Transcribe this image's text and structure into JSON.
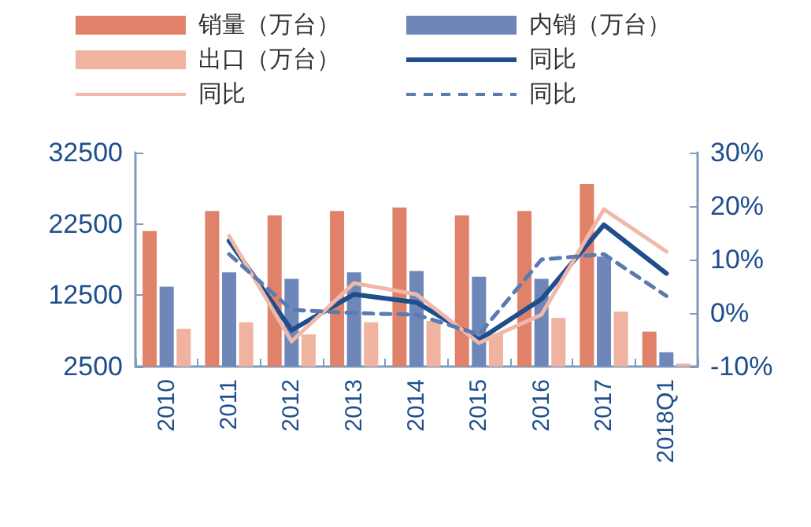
{
  "chart_data": {
    "type": "bar",
    "categories": [
      "2010",
      "2011",
      "2012",
      "2013",
      "2014",
      "2015",
      "2016",
      "2017",
      "2018Q1"
    ],
    "series": [
      {
        "name": "销量（万台）",
        "color": "#e0826a",
        "values": [
          21500,
          24300,
          23700,
          24300,
          24800,
          23700,
          24300,
          28100,
          7400
        ]
      },
      {
        "name": "内销（万台）",
        "color": "#6e87b8",
        "values": [
          13700,
          15700,
          14800,
          15700,
          15900,
          15100,
          14800,
          17900,
          4500
        ]
      },
      {
        "name": "出口（万台）",
        "color": "#efb3a0",
        "values": [
          7800,
          8700,
          7000,
          8700,
          8900,
          7100,
          9300,
          10200,
          2900
        ]
      },
      {
        "name": "同比",
        "type": "line",
        "axis": "y2",
        "color": "#1f4e8c",
        "line_style": "solid",
        "values": [
          null,
          13.5,
          -3.2,
          3.5,
          2,
          -5,
          2.6,
          16.5,
          7.4
        ]
      },
      {
        "name": "同比",
        "type": "line",
        "axis": "y2",
        "color": "#f0b8a8",
        "line_style": "solid",
        "values": [
          null,
          14.4,
          -5.3,
          5.6,
          3.5,
          -5.6,
          -0.3,
          19.4,
          11.5
        ]
      },
      {
        "name": "同比",
        "type": "line",
        "axis": "y2",
        "color": "#5b7bb0",
        "line_style": "dashed",
        "values": [
          null,
          11,
          0.6,
          0,
          -0.3,
          -4,
          10,
          11,
          3.2
        ]
      }
    ],
    "ylim": [
      2500,
      32500
    ],
    "yticks": [
      2500,
      12500,
      22500,
      32500
    ],
    "y2lim": [
      -10,
      30
    ],
    "y2ticks": [
      {
        "value": -10,
        "label": "-10%"
      },
      {
        "value": 0,
        "label": "0%"
      },
      {
        "value": 10,
        "label": "10%"
      },
      {
        "value": 20,
        "label": "20%"
      },
      {
        "value": 30,
        "label": "30%"
      }
    ],
    "grid": false,
    "legend": "top",
    "marker": "none"
  }
}
